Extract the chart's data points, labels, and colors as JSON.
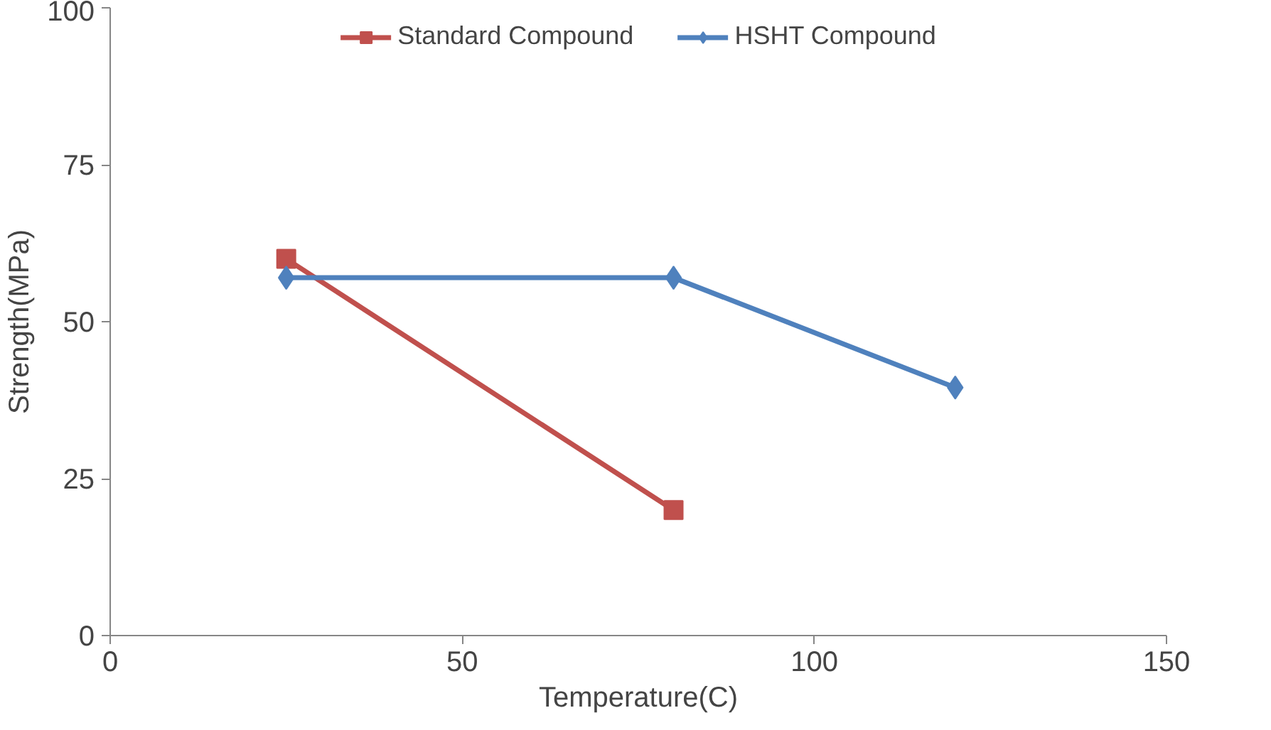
{
  "chart_data": {
    "type": "line",
    "xlabel": "Temperature(C)",
    "ylabel": "Strength(MPa)",
    "xlim": [
      0,
      150
    ],
    "xticks": [
      0,
      50,
      100,
      150
    ],
    "ylim": [
      0,
      100
    ],
    "yticks": [
      0,
      25,
      50,
      75,
      100
    ],
    "grid": false,
    "legend": "top",
    "line_style": "solid",
    "series": [
      {
        "name": "Standard Compound",
        "color": "#c0504d",
        "marker": "square",
        "x": [
          25,
          80
        ],
        "values": [
          60,
          20
        ]
      },
      {
        "name": "HSHT Compound",
        "color": "#4f81bd",
        "marker": "diamond",
        "x": [
          25,
          80,
          120
        ],
        "values": [
          57,
          57,
          39.5
        ]
      }
    ]
  }
}
